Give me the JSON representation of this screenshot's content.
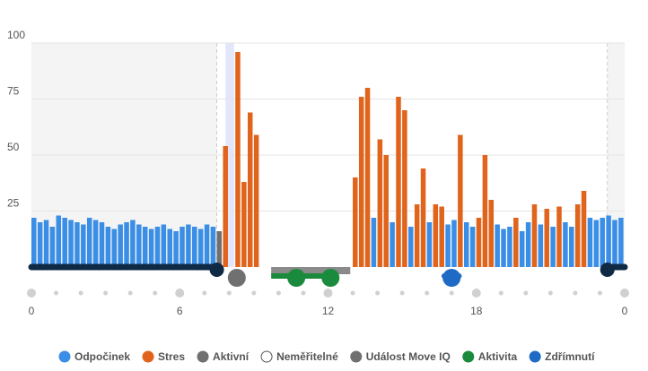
{
  "chart_data": {
    "type": "bar",
    "xlim": [
      0,
      24
    ],
    "xticks": [
      0,
      6,
      12,
      18,
      {
        "value": 24,
        "label": "0"
      }
    ],
    "ylim": [
      0,
      100
    ],
    "yticks": [
      25,
      50,
      75,
      100
    ],
    "grid": true,
    "x": [
      0,
      0.25,
      0.5,
      0.75,
      1,
      1.25,
      1.5,
      1.75,
      2,
      2.25,
      2.5,
      2.75,
      3,
      3.25,
      3.5,
      3.75,
      4,
      4.25,
      4.5,
      4.75,
      5,
      5.25,
      5.5,
      5.75,
      6,
      6.25,
      6.5,
      6.75,
      7,
      7.25,
      7.5,
      7.75,
      8,
      8.25,
      8.5,
      8.75,
      9,
      9.25,
      9.5,
      9.75,
      10,
      10.25,
      10.5,
      10.75,
      11,
      11.25,
      11.5,
      11.75,
      12,
      12.25,
      12.5,
      12.75,
      13,
      13.25,
      13.5,
      13.75,
      14,
      14.25,
      14.5,
      14.75,
      15,
      15.25,
      15.5,
      15.75,
      16,
      16.25,
      16.5,
      16.75,
      17,
      17.25,
      17.5,
      17.75,
      18,
      18.25,
      18.5,
      18.75,
      19,
      19.25,
      19.5,
      19.75,
      20,
      20.25,
      20.5,
      20.75,
      21,
      21.25,
      21.5,
      21.75,
      22,
      22.25,
      22.5,
      22.75,
      23,
      23.25,
      23.5,
      23.75
    ],
    "series": [
      {
        "name": "Odpočinek",
        "color": "#3a8ee6",
        "values": [
          22,
          20,
          21,
          18,
          23,
          22,
          21,
          20,
          19,
          22,
          21,
          20,
          18,
          17,
          19,
          20,
          21,
          19,
          18,
          17,
          18,
          19,
          17,
          16,
          18,
          19,
          18,
          17,
          19,
          18,
          null,
          null,
          null,
          null,
          null,
          null,
          null,
          null,
          null,
          null,
          null,
          null,
          null,
          null,
          null,
          null,
          null,
          null,
          null,
          null,
          null,
          null,
          null,
          null,
          null,
          22,
          null,
          null,
          20,
          null,
          null,
          18,
          null,
          null,
          20,
          null,
          null,
          19,
          21,
          null,
          20,
          18,
          null,
          null,
          null,
          19,
          17,
          18,
          null,
          16,
          20,
          null,
          19,
          null,
          18,
          null,
          20,
          18,
          null,
          null,
          22,
          21,
          22,
          23,
          21,
          22
        ]
      },
      {
        "name": "Stres",
        "color": "#e0641c",
        "values": [
          null,
          null,
          null,
          null,
          null,
          null,
          null,
          null,
          null,
          null,
          null,
          null,
          null,
          null,
          null,
          null,
          null,
          null,
          null,
          null,
          null,
          null,
          null,
          null,
          null,
          null,
          null,
          null,
          null,
          null,
          null,
          54,
          null,
          96,
          38,
          69,
          59,
          null,
          null,
          null,
          null,
          null,
          null,
          null,
          null,
          null,
          null,
          null,
          null,
          null,
          null,
          null,
          40,
          76,
          80,
          null,
          57,
          50,
          null,
          76,
          70,
          null,
          28,
          44,
          null,
          28,
          27,
          null,
          null,
          59,
          null,
          null,
          22,
          50,
          30,
          null,
          null,
          null,
          22,
          null,
          null,
          28,
          null,
          26,
          null,
          27,
          null,
          null,
          28,
          34,
          null,
          null,
          null,
          null,
          null,
          null
        ]
      },
      {
        "name": "Aktivní",
        "color": "#707070",
        "values": [
          null,
          null,
          null,
          null,
          null,
          null,
          null,
          null,
          null,
          null,
          null,
          null,
          null,
          null,
          null,
          null,
          null,
          null,
          null,
          null,
          null,
          null,
          null,
          null,
          null,
          null,
          null,
          null,
          null,
          null,
          16,
          null,
          null,
          null,
          null,
          null,
          null,
          null,
          null,
          null,
          null,
          null,
          null,
          null,
          null,
          null,
          null,
          null,
          null,
          null,
          null,
          null,
          null,
          null,
          null,
          null,
          null,
          null,
          null,
          null,
          null,
          null,
          null,
          null,
          null,
          null,
          null,
          null,
          null,
          null,
          null,
          null,
          null,
          null,
          null,
          null,
          null,
          null,
          null,
          null,
          null,
          null,
          null,
          null,
          null,
          null,
          null,
          null,
          null,
          null,
          null,
          null,
          null,
          null,
          null,
          null
        ]
      }
    ],
    "sleep": [
      [
        0,
        7.5
      ],
      [
        23.3,
        24
      ]
    ],
    "unmeasured": [
      [
        7.85,
        8.2
      ]
    ],
    "move_iq": [
      [
        9.7,
        12.9
      ]
    ],
    "activity": [
      [
        9.7,
        12.1
      ]
    ],
    "nap": [
      [
        16.7,
        17.3
      ]
    ],
    "other_legend": [
      {
        "name": "Neměřitelné",
        "color": "#ffffff"
      },
      {
        "name": "Událost Move IQ",
        "color": "#707070"
      },
      {
        "name": "Aktivita",
        "color": "#1a8a3c"
      },
      {
        "name": "Zdřímnutí",
        "color": "#1f6ac4"
      }
    ]
  }
}
